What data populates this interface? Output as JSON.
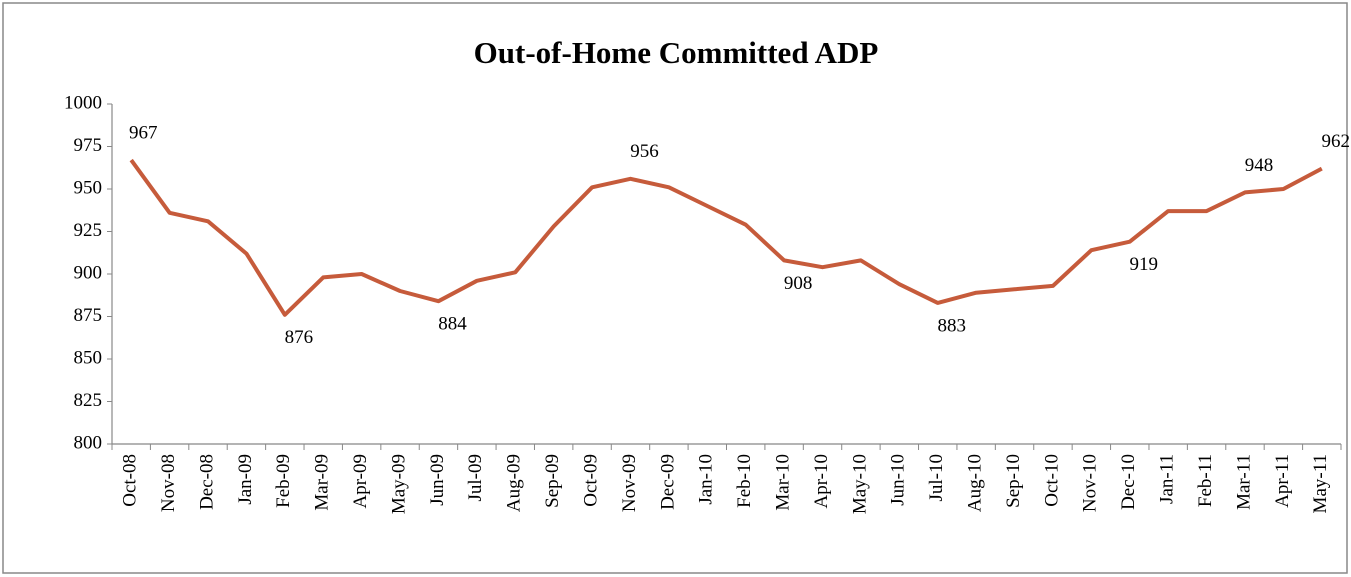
{
  "chart_data": {
    "type": "line",
    "title": "Out-of-Home Committed ADP",
    "categories": [
      "Oct-08",
      "Nov-08",
      "Dec-08",
      "Jan-09",
      "Feb-09",
      "Mar-09",
      "Apr-09",
      "May-09",
      "Jun-09",
      "Jul-09",
      "Aug-09",
      "Sep-09",
      "Oct-09",
      "Nov-09",
      "Dec-09",
      "Jan-10",
      "Feb-10",
      "Mar-10",
      "Apr-10",
      "May-10",
      "Jun-10",
      "Jul-10",
      "Aug-10",
      "Sep-10",
      "Oct-10",
      "Nov-10",
      "Dec-10",
      "Jan-11",
      "Feb-11",
      "Mar-11",
      "Apr-11",
      "May-11"
    ],
    "values": [
      967,
      936,
      931,
      912,
      876,
      898,
      900,
      890,
      884,
      896,
      901,
      928,
      951,
      956,
      951,
      940,
      929,
      908,
      904,
      908,
      894,
      883,
      889,
      891,
      893,
      914,
      919,
      937,
      937,
      948,
      950,
      962
    ],
    "value_labels": [
      "967",
      null,
      null,
      null,
      "876",
      null,
      null,
      null,
      "884",
      null,
      null,
      null,
      null,
      "956",
      null,
      null,
      null,
      "908",
      null,
      null,
      null,
      "883",
      null,
      null,
      null,
      null,
      "919",
      null,
      null,
      "948",
      null,
      "962"
    ],
    "color": "#c65b3b",
    "ylim": [
      800,
      1000
    ],
    "yticks": [
      800,
      825,
      850,
      875,
      900,
      925,
      950,
      975,
      1000
    ],
    "grid": false
  }
}
